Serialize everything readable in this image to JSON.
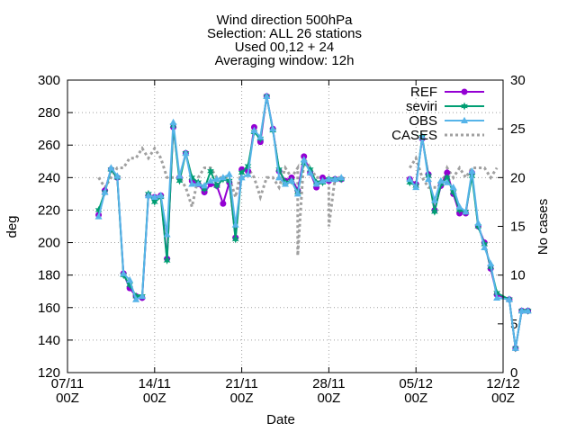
{
  "chart_data": {
    "type": "line",
    "title_lines": [
      "Wind direction 500hPa",
      "Selection: ALL      26 stations",
      "Used 00,12 + 24",
      "Averaging window: 12h"
    ],
    "xlabel": "Date",
    "ylabel": "deg",
    "y2label": "No cases",
    "x_range": [
      0,
      35
    ],
    "x_ticks": [
      {
        "pos": 0,
        "line1": "07/11",
        "line2": "00Z"
      },
      {
        "pos": 7,
        "line1": "14/11",
        "line2": "00Z"
      },
      {
        "pos": 14,
        "line1": "21/11",
        "line2": "00Z"
      },
      {
        "pos": 21,
        "line1": "28/11",
        "line2": "00Z"
      },
      {
        "pos": 28,
        "line1": "05/12",
        "line2": "00Z"
      },
      {
        "pos": 35,
        "line1": "12/12",
        "line2": "00Z"
      }
    ],
    "ylim": [
      120,
      300
    ],
    "y_ticks": [
      120,
      140,
      160,
      180,
      200,
      220,
      240,
      260,
      280,
      300
    ],
    "y2lim": [
      0,
      30
    ],
    "y2_ticks": [
      0,
      5,
      10,
      15,
      20,
      25,
      30
    ],
    "grid": true,
    "legend_position": "top-right",
    "x": [
      2.5,
      3.0,
      3.5,
      4.0,
      4.5,
      5.0,
      5.5,
      6.0,
      6.5,
      7.0,
      7.5,
      8.0,
      8.5,
      9.0,
      9.5,
      10.0,
      10.5,
      11.0,
      11.5,
      12.0,
      12.5,
      13.0,
      13.5,
      14.0,
      14.5,
      15.0,
      15.5,
      16.0,
      16.5,
      17.0,
      17.5,
      18.0,
      18.5,
      19.0,
      19.5,
      20.0,
      20.5,
      21.0,
      21.5,
      22.0,
      27.5,
      28.0,
      28.5,
      29.0,
      29.5,
      30.0,
      30.5,
      31.0,
      31.5,
      32.0,
      32.5,
      33.0,
      33.5,
      34.0,
      34.5
    ],
    "series": [
      {
        "name": "REF",
        "color": "#9400d3",
        "marker": "circle",
        "values": [
          217,
          232,
          245,
          240,
          181,
          172,
          167,
          166,
          229,
          228,
          229,
          190,
          271,
          240,
          255,
          238,
          236,
          231,
          236,
          235,
          224,
          237,
          203,
          245,
          244,
          271,
          262,
          290,
          270,
          244,
          238,
          240,
          232,
          253,
          243,
          234,
          240,
          238,
          239,
          239,
          239,
          236,
          264,
          242,
          220,
          235,
          243,
          230,
          218,
          218,
          243,
          210,
          200,
          184,
          168
        ]
      },
      {
        "name": "seviri",
        "color": "#009e73",
        "marker": "star",
        "values": [
          220,
          231,
          245,
          240,
          180,
          174,
          167,
          167,
          230,
          225,
          228,
          189,
          272,
          238,
          255,
          240,
          237,
          233,
          244,
          235,
          239,
          238,
          202,
          243,
          247,
          268,
          264,
          290,
          269,
          245,
          237,
          238,
          231,
          249,
          245,
          237,
          237,
          239,
          239,
          239,
          237,
          235,
          265,
          241,
          219,
          236,
          240,
          231,
          220,
          219,
          241,
          210,
          199,
          185,
          169
        ]
      },
      {
        "name": "OBS",
        "color": "#56b4e9",
        "marker": "triangle",
        "values": [
          216,
          231,
          246,
          241,
          181,
          177,
          165,
          167,
          229,
          228,
          229,
          205,
          274,
          241,
          255,
          236,
          236,
          235,
          238,
          239,
          240,
          242,
          211,
          240,
          242,
          269,
          265,
          290,
          270,
          240,
          236,
          238,
          230,
          251,
          243,
          236,
          238,
          239,
          239,
          240,
          239,
          234,
          265,
          239,
          226,
          238,
          237,
          234,
          222,
          219,
          244,
          212,
          197,
          187,
          166
        ]
      },
      {
        "name": "CASES",
        "color": "#a0a0a0",
        "axis": "right",
        "style": "dotted",
        "values": [
          20,
          19,
          20,
          21,
          21,
          22,
          22,
          23,
          22,
          23,
          22,
          20,
          20,
          20,
          19,
          17,
          20,
          21,
          21,
          20,
          20,
          20,
          18,
          21,
          21,
          20,
          18,
          20,
          20,
          19,
          21,
          20,
          21,
          22,
          21,
          20,
          20,
          20,
          20,
          20,
          21,
          22,
          20,
          19,
          19,
          19,
          21,
          20,
          21,
          20,
          21,
          21,
          21,
          20,
          21
        ]
      }
    ],
    "obs_tail": {
      "x": [
        35.5,
        36.0,
        36.5,
        37.0
      ],
      "values": [
        165,
        135,
        158,
        158
      ]
    },
    "case_drops": [
      {
        "x": 18.5,
        "value": 12
      },
      {
        "x": 21.0,
        "value": 15
      }
    ]
  }
}
